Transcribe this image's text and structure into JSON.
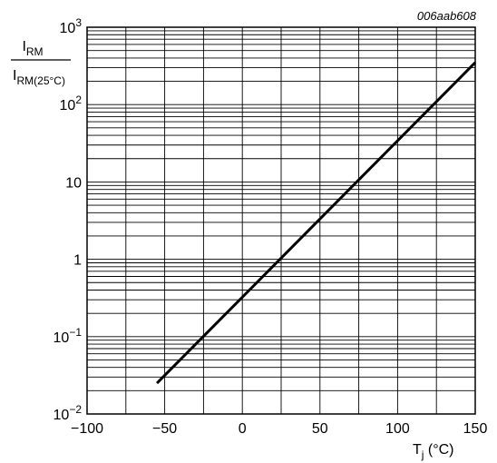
{
  "figure_id": "006aab608",
  "chart_data": {
    "type": "line",
    "x_scale": "linear",
    "y_scale": "log",
    "xlim": [
      -100,
      150
    ],
    "ylim": [
      0.01,
      1000
    ],
    "x_ticks": [
      -100,
      -50,
      0,
      50,
      100,
      150
    ],
    "x_tick_labels": [
      "−100",
      "−50",
      "0",
      "50",
      "100",
      "150"
    ],
    "y_ticks": [
      0.01,
      0.1,
      1,
      10,
      100,
      1000
    ],
    "y_tick_labels": [
      {
        "base": "10",
        "exp": "−2"
      },
      {
        "base": "10",
        "exp": "−1"
      },
      {
        "base": "1",
        "exp": ""
      },
      {
        "base": "10",
        "exp": ""
      },
      {
        "base": "10",
        "exp": "2"
      },
      {
        "base": "10",
        "exp": "3"
      }
    ],
    "grid": true,
    "xlabel": {
      "main": "T",
      "sub": "j",
      "unit": " (°C)"
    },
    "ylabel": {
      "numerator": {
        "main": "I",
        "sub": "RM"
      },
      "denominator": {
        "main": "I",
        "sub": "RM(25°C)"
      }
    },
    "series": [
      {
        "x": [
          -55,
          150
        ],
        "y": [
          0.025,
          350
        ],
        "color": "#000000"
      }
    ]
  }
}
